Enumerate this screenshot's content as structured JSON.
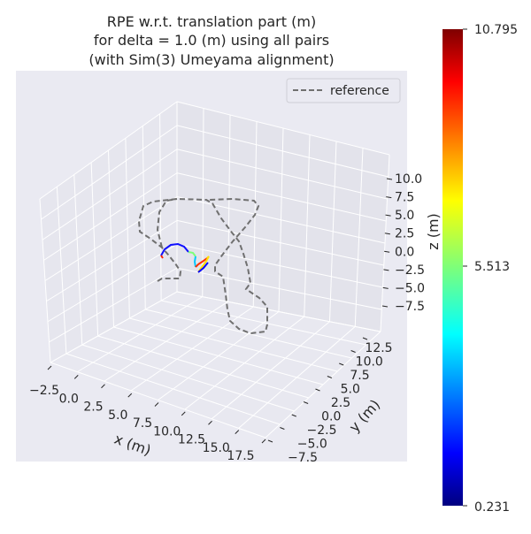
{
  "chart_data": {
    "type": "line",
    "projection": "3d",
    "title": [
      "RPE w.r.t. translation part (m)",
      "for delta = 1.0 (m) using all pairs",
      "(with Sim(3) Umeyama alignment)"
    ],
    "xlabel": "x (m)",
    "ylabel": "y (m)",
    "zlabel": "z (m)",
    "x_ticks": [
      "−2.5",
      "0.0",
      "2.5",
      "5.0",
      "7.5",
      "10.0",
      "12.5",
      "15.0",
      "17.5"
    ],
    "y_ticks": [
      "−7.5",
      "−5.0",
      "−2.5",
      "0.0",
      "2.5",
      "5.0",
      "7.5",
      "10.0",
      "12.5"
    ],
    "z_ticks": [
      "10.0",
      "7.5",
      "5.0",
      "2.5",
      "0.0",
      "−2.5",
      "−5.0",
      "−7.5"
    ],
    "legend": {
      "position": "top-right",
      "entries": [
        {
          "name": "reference",
          "style": "dashed",
          "color": "#707070"
        }
      ]
    },
    "grid": true,
    "background": "#eaeaf2",
    "colorbar": {
      "colormap": "jet",
      "min": 0.231,
      "max": 10.795,
      "ticks": [
        "10.795",
        "5.513",
        "0.231"
      ]
    }
  }
}
